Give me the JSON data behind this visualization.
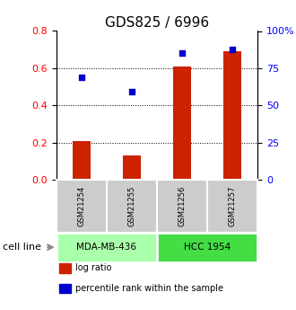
{
  "title": "GDS825 / 6996",
  "samples": [
    "GSM21254",
    "GSM21255",
    "GSM21256",
    "GSM21257"
  ],
  "log_ratio": [
    0.21,
    0.13,
    0.61,
    0.69
  ],
  "percentile_rank": [
    69,
    59,
    85,
    87.5
  ],
  "cell_lines": [
    {
      "name": "MDA-MB-436",
      "samples": [
        0,
        1
      ],
      "color": "#aaffaa"
    },
    {
      "name": "HCC 1954",
      "samples": [
        2,
        3
      ],
      "color": "#44dd44"
    }
  ],
  "left_ylim": [
    0,
    0.8
  ],
  "right_ylim": [
    0,
    100
  ],
  "left_yticks": [
    0,
    0.2,
    0.4,
    0.6,
    0.8
  ],
  "right_yticks": [
    0,
    25,
    50,
    75,
    100
  ],
  "right_yticklabels": [
    "0",
    "25",
    "50",
    "75",
    "100%"
  ],
  "bar_color": "#cc2200",
  "dot_color": "#0000cc",
  "bar_width": 0.35,
  "cell_line_label": "cell line",
  "legend_items": [
    {
      "color": "#cc2200",
      "label": "log ratio"
    },
    {
      "color": "#0000cc",
      "label": "percentile rank within the sample"
    }
  ],
  "sample_box_color": "#cccccc",
  "title_fontsize": 11,
  "tick_fontsize": 8,
  "sample_fontsize": 6,
  "cellline_fontsize": 7.5,
  "legend_fontsize": 7,
  "cellline_label_fontsize": 8
}
